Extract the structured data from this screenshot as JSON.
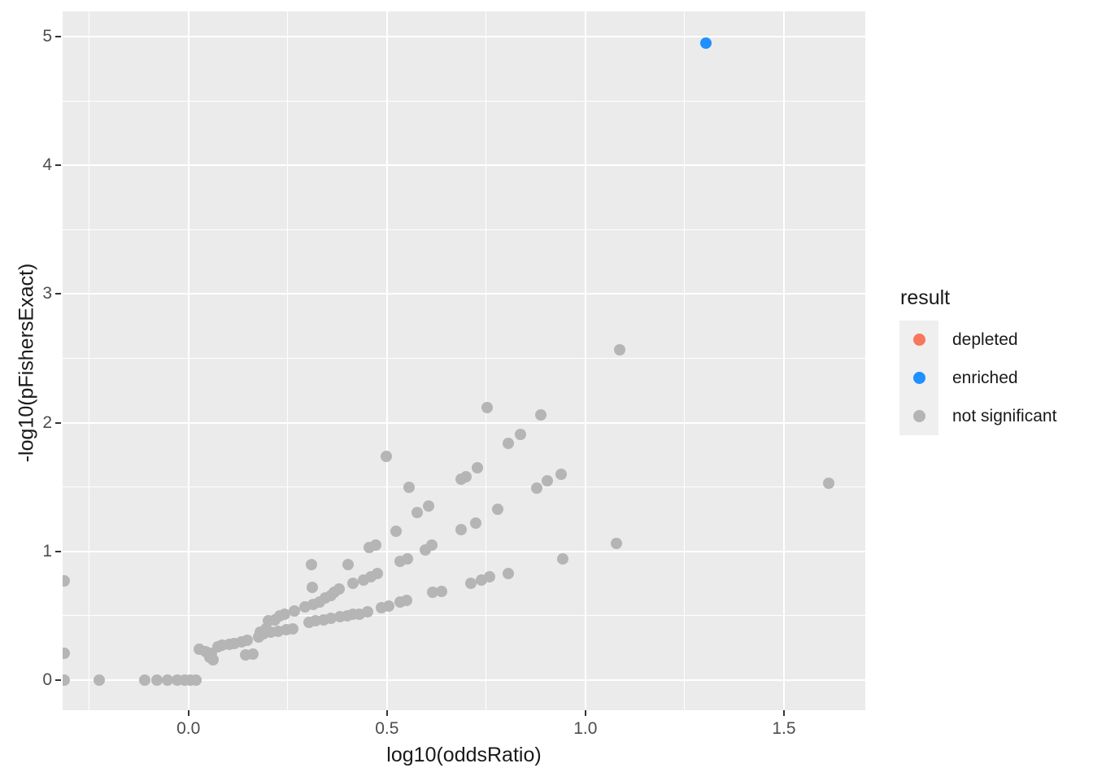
{
  "chart_data": {
    "type": "scatter",
    "title": "",
    "xlabel": "log10(oddsRatio)",
    "ylabel": "-log10(pFishersExact)",
    "xlim": [
      -0.317,
      1.705
    ],
    "ylim": [
      -0.234,
      5.197
    ],
    "x_ticks": [
      0.0,
      0.5,
      1.0,
      1.5
    ],
    "x_tick_labels": [
      "0.0",
      "0.5",
      "1.0",
      "1.5"
    ],
    "y_ticks": [
      0,
      1,
      2,
      3,
      4,
      5
    ],
    "y_tick_labels": [
      "0",
      "1",
      "2",
      "3",
      "4",
      "5"
    ],
    "x_minor": [
      -0.25,
      0.25,
      0.75,
      1.25
    ],
    "y_minor": [
      0.5,
      1.5,
      2.5,
      3.5,
      4.5
    ],
    "grid": true,
    "panel_bg": "#EBEBEB",
    "grid_color": "#FFFFFF",
    "tick_color": "#333333",
    "tick_label_color": "#4D4D4D",
    "legend": {
      "title": "result",
      "position": "right",
      "key_bg": "#EFEFEF",
      "entries": [
        {
          "label": "depleted",
          "color": "#F8765C"
        },
        {
          "label": "enriched",
          "color": "#1E90FF"
        },
        {
          "label": "not significant",
          "color": "#B5B5B5"
        }
      ]
    },
    "series": [
      {
        "name": "depleted",
        "color": "#F8765C",
        "points": []
      },
      {
        "name": "enriched",
        "color": "#1E90FF",
        "points": [
          [
            1.304,
            4.95
          ]
        ]
      },
      {
        "name": "not significant",
        "color": "#B5B5B5",
        "points": [
          [
            -0.313,
            0.0
          ],
          [
            -0.225,
            0.0
          ],
          [
            -0.11,
            0.0
          ],
          [
            -0.08,
            0.0
          ],
          [
            -0.053,
            0.0
          ],
          [
            -0.028,
            0.0
          ],
          [
            -0.01,
            0.0
          ],
          [
            0.005,
            0.0
          ],
          [
            0.018,
            0.0
          ],
          [
            -0.313,
            0.208
          ],
          [
            -0.313,
            0.769
          ],
          [
            0.027,
            0.24
          ],
          [
            0.043,
            0.22
          ],
          [
            0.057,
            0.21
          ],
          [
            0.053,
            0.18
          ],
          [
            0.062,
            0.16
          ],
          [
            0.074,
            0.26
          ],
          [
            0.084,
            0.27
          ],
          [
            0.102,
            0.275
          ],
          [
            0.115,
            0.285
          ],
          [
            0.133,
            0.3
          ],
          [
            0.149,
            0.31
          ],
          [
            0.143,
            0.195
          ],
          [
            0.162,
            0.2
          ],
          [
            0.176,
            0.335
          ],
          [
            0.18,
            0.37
          ],
          [
            0.195,
            0.4
          ],
          [
            0.201,
            0.46
          ],
          [
            0.217,
            0.47
          ],
          [
            0.231,
            0.5
          ],
          [
            0.242,
            0.51
          ],
          [
            0.266,
            0.54
          ],
          [
            0.293,
            0.57
          ],
          [
            0.313,
            0.59
          ],
          [
            0.33,
            0.61
          ],
          [
            0.344,
            0.64
          ],
          [
            0.36,
            0.655
          ],
          [
            0.368,
            0.68
          ],
          [
            0.379,
            0.71
          ],
          [
            0.19,
            0.36
          ],
          [
            0.207,
            0.37
          ],
          [
            0.225,
            0.38
          ],
          [
            0.246,
            0.39
          ],
          [
            0.262,
            0.4
          ],
          [
            0.303,
            0.45
          ],
          [
            0.32,
            0.46
          ],
          [
            0.34,
            0.47
          ],
          [
            0.36,
            0.48
          ],
          [
            0.381,
            0.49
          ],
          [
            0.4,
            0.5
          ],
          [
            0.415,
            0.51
          ],
          [
            0.43,
            0.515
          ],
          [
            0.452,
            0.53
          ],
          [
            0.487,
            0.56
          ],
          [
            0.504,
            0.575
          ],
          [
            0.534,
            0.61
          ],
          [
            0.549,
            0.62
          ],
          [
            0.616,
            0.68
          ],
          [
            0.637,
            0.69
          ],
          [
            0.712,
            0.75
          ],
          [
            0.739,
            0.78
          ],
          [
            0.758,
            0.8
          ],
          [
            0.805,
            0.83
          ],
          [
            0.415,
            0.75
          ],
          [
            0.44,
            0.78
          ],
          [
            0.46,
            0.8
          ],
          [
            0.475,
            0.83
          ],
          [
            0.534,
            0.92
          ],
          [
            0.551,
            0.94
          ],
          [
            0.596,
            1.01
          ],
          [
            0.614,
            1.05
          ],
          [
            0.686,
            1.17
          ],
          [
            0.723,
            1.22
          ],
          [
            0.78,
            1.33
          ],
          [
            0.309,
            0.9
          ],
          [
            0.403,
            0.9
          ],
          [
            0.311,
            0.72
          ],
          [
            0.456,
            1.03
          ],
          [
            0.471,
            1.05
          ],
          [
            0.522,
            1.16
          ],
          [
            0.555,
            1.5
          ],
          [
            0.577,
            1.3
          ],
          [
            0.604,
            1.35
          ],
          [
            0.687,
            1.56
          ],
          [
            0.699,
            1.58
          ],
          [
            0.728,
            1.65
          ],
          [
            0.877,
            1.49
          ],
          [
            0.905,
            1.55
          ],
          [
            0.938,
            1.6
          ],
          [
            0.498,
            1.74
          ],
          [
            0.752,
            2.12
          ],
          [
            0.805,
            1.84
          ],
          [
            0.836,
            1.91
          ],
          [
            0.887,
            2.06
          ],
          [
            1.086,
            2.57
          ],
          [
            0.943,
            0.94
          ],
          [
            1.078,
            1.06
          ],
          [
            1.613,
            1.53
          ]
        ]
      }
    ]
  }
}
